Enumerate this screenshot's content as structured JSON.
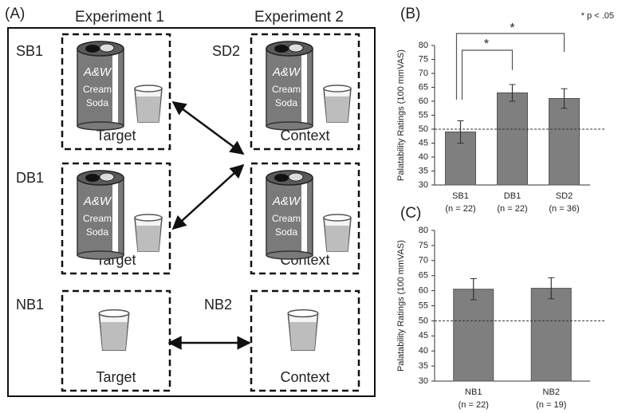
{
  "diagram": {
    "panel_label": "(A)",
    "columns": [
      "Experiment 1",
      "Experiment 2"
    ],
    "boxes": [
      {
        "label": "SB1",
        "caption": "Target"
      },
      {
        "label": "SD2",
        "caption": "Context"
      },
      {
        "label": "DB1",
        "caption": "Target"
      },
      {
        "label": null,
        "caption": "Context"
      },
      {
        "label": "NB1",
        "caption": "Target"
      },
      {
        "label": "NB2",
        "caption": "Context"
      }
    ],
    "can_text": [
      "A&W",
      "Cream",
      "Soda"
    ]
  },
  "chart_data": [
    {
      "type": "bar",
      "panel_label": "(B)",
      "ylabel": "Palatability Ratings (100 mmVAS)",
      "categories": [
        "SB1",
        "DB1",
        "SD2"
      ],
      "sample_sizes": [
        "(n = 22)",
        "(n = 22)",
        "(n = 36)"
      ],
      "values": [
        49,
        63,
        61
      ],
      "errors": [
        4,
        3,
        3.5
      ],
      "color": "#7f7f7f",
      "reference_line": 50,
      "ylim": [
        30,
        80
      ],
      "yticks": [
        30,
        35,
        40,
        45,
        50,
        55,
        60,
        65,
        70,
        75,
        80
      ],
      "significance": [
        "*",
        "*"
      ],
      "significance_note": "* p < .05"
    },
    {
      "type": "bar",
      "panel_label": "(C)",
      "ylabel": "Palatability Ratings (100 mmVAS)",
      "categories": [
        "NB1",
        "NB2"
      ],
      "sample_sizes": [
        "(n = 22)",
        "(n = 19)"
      ],
      "values": [
        60.5,
        60.8
      ],
      "errors": [
        3.5,
        3.5
      ],
      "color": "#7f7f7f",
      "reference_line": 50,
      "ylim": [
        30,
        80
      ],
      "yticks": [
        30,
        35,
        40,
        45,
        50,
        55,
        60,
        65,
        70,
        75,
        80
      ]
    }
  ]
}
